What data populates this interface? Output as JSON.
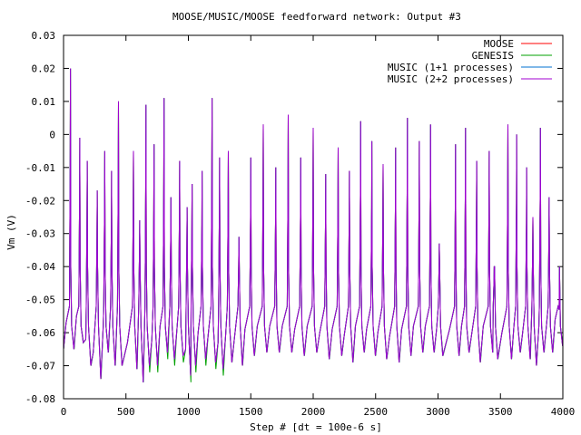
{
  "chart_data": {
    "type": "line",
    "title": "MOOSE/MUSIC/MOOSE feedforward network: Output #3",
    "xlabel": "Step # [dt = 100e-6 s]",
    "ylabel": "Vm (V)",
    "xlim": [
      0,
      4000
    ],
    "ylim": [
      -0.08,
      0.03
    ],
    "x_ticks": [
      0,
      500,
      1000,
      1500,
      2000,
      2500,
      3000,
      3500,
      4000
    ],
    "x_tick_labels": [
      "0",
      "500",
      "1000",
      "1500",
      "2000",
      "2500",
      "3000",
      "3500",
      "4000"
    ],
    "y_ticks": [
      0.03,
      0.02,
      0.01,
      0,
      -0.01,
      -0.02,
      -0.03,
      -0.04,
      -0.05,
      -0.06,
      -0.07,
      -0.08
    ],
    "y_tick_labels": [
      "0.03",
      "0.02",
      "0.01",
      "0",
      "-0.01",
      "-0.02",
      "-0.03",
      "-0.04",
      "-0.05",
      "-0.06",
      "-0.07",
      "-0.08"
    ],
    "legend_position": "top-right",
    "baseline": -0.065,
    "spikes": [
      {
        "x": 55,
        "peak": 0.02,
        "trough": -0.065
      },
      {
        "x": 130,
        "peak": -0.001,
        "trough": -0.063
      },
      {
        "x": 190,
        "peak": -0.008,
        "trough": -0.07
      },
      {
        "x": 270,
        "peak": -0.017,
        "trough": -0.074
      },
      {
        "x": 330,
        "peak": -0.005,
        "trough": -0.066
      },
      {
        "x": 385,
        "peak": -0.011,
        "trough": -0.07
      },
      {
        "x": 440,
        "peak": 0.01,
        "trough": -0.07
      },
      {
        "x": 560,
        "peak": -0.005,
        "trough": -0.071
      },
      {
        "x": 610,
        "peak": -0.026,
        "trough": -0.075
      },
      {
        "x": 660,
        "peak": 0.009,
        "trough": -0.07
      },
      {
        "x": 725,
        "peak": -0.003,
        "trough": -0.07
      },
      {
        "x": 805,
        "peak": 0.011,
        "trough": -0.066
      },
      {
        "x": 860,
        "peak": -0.019,
        "trough": -0.068
      },
      {
        "x": 930,
        "peak": -0.008,
        "trough": -0.067
      },
      {
        "x": 990,
        "peak": -0.022,
        "trough": -0.073
      },
      {
        "x": 1030,
        "peak": -0.015,
        "trough": -0.07
      },
      {
        "x": 1110,
        "peak": -0.011,
        "trough": -0.068
      },
      {
        "x": 1190,
        "peak": 0.011,
        "trough": -0.069
      },
      {
        "x": 1250,
        "peak": -0.007,
        "trough": -0.071
      },
      {
        "x": 1320,
        "peak": -0.005,
        "trough": -0.069
      },
      {
        "x": 1405,
        "peak": -0.031,
        "trough": -0.07
      },
      {
        "x": 1500,
        "peak": -0.007,
        "trough": -0.067
      },
      {
        "x": 1600,
        "peak": 0.003,
        "trough": -0.066
      },
      {
        "x": 1700,
        "peak": -0.01,
        "trough": -0.066
      },
      {
        "x": 1800,
        "peak": 0.006,
        "trough": -0.066
      },
      {
        "x": 1900,
        "peak": -0.007,
        "trough": -0.067
      },
      {
        "x": 2000,
        "peak": 0.002,
        "trough": -0.066
      },
      {
        "x": 2100,
        "peak": -0.012,
        "trough": -0.068
      },
      {
        "x": 2200,
        "peak": -0.004,
        "trough": -0.067
      },
      {
        "x": 2290,
        "peak": -0.011,
        "trough": -0.069
      },
      {
        "x": 2380,
        "peak": 0.004,
        "trough": -0.066
      },
      {
        "x": 2470,
        "peak": -0.002,
        "trough": -0.067
      },
      {
        "x": 2560,
        "peak": -0.009,
        "trough": -0.068
      },
      {
        "x": 2660,
        "peak": -0.004,
        "trough": -0.069
      },
      {
        "x": 2755,
        "peak": 0.005,
        "trough": -0.067
      },
      {
        "x": 2850,
        "peak": -0.002,
        "trough": -0.066
      },
      {
        "x": 2940,
        "peak": 0.003,
        "trough": -0.066
      },
      {
        "x": 3010,
        "peak": -0.033,
        "trough": -0.067
      },
      {
        "x": 3140,
        "peak": -0.003,
        "trough": -0.067
      },
      {
        "x": 3220,
        "peak": 0.002,
        "trough": -0.066
      },
      {
        "x": 3310,
        "peak": -0.008,
        "trough": -0.069
      },
      {
        "x": 3410,
        "peak": -0.005,
        "trough": -0.066
      },
      {
        "x": 3450,
        "peak": -0.04,
        "trough": -0.068
      },
      {
        "x": 3560,
        "peak": 0.003,
        "trough": -0.068
      },
      {
        "x": 3630,
        "peak": 0.0,
        "trough": -0.066
      },
      {
        "x": 3710,
        "peak": -0.01,
        "trough": -0.068
      },
      {
        "x": 3760,
        "peak": -0.025,
        "trough": -0.07
      },
      {
        "x": 3820,
        "peak": 0.002,
        "trough": -0.066
      },
      {
        "x": 3890,
        "peak": -0.019,
        "trough": -0.066
      },
      {
        "x": 3970,
        "peak": -0.053,
        "trough": -0.064
      }
    ],
    "series": [
      {
        "name": "MOOSE",
        "color": "#ff0000"
      },
      {
        "name": "GENESIS",
        "color": "#00a000"
      },
      {
        "name": "MUSIC (1+1 processes)",
        "color": "#0070d0"
      },
      {
        "name": "MUSIC (2+2 processes)",
        "color": "#a000d0"
      }
    ]
  }
}
